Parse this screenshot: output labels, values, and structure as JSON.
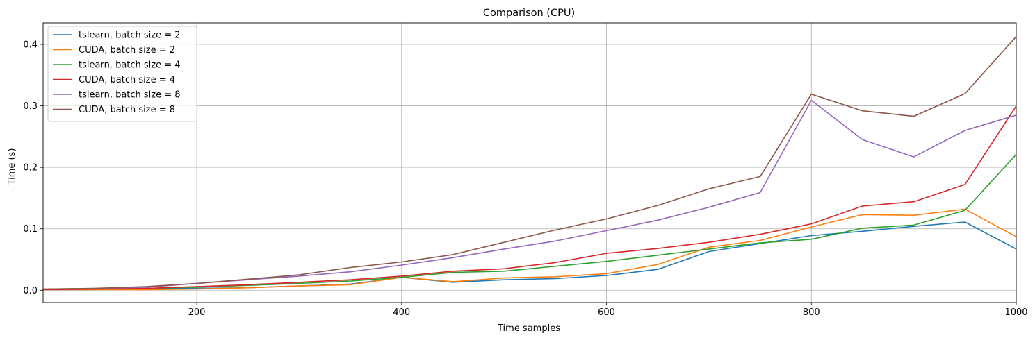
{
  "chart_data": {
    "type": "line",
    "title": "Comparison (CPU)",
    "xlabel": "Time samples",
    "ylabel": "Time (s)",
    "xlim": [
      50,
      1000
    ],
    "ylim": [
      -0.02,
      0.435
    ],
    "xticks": [
      200,
      400,
      600,
      800,
      1000
    ],
    "yticks": [
      0.0,
      0.1,
      0.2,
      0.3,
      0.4
    ],
    "xtick_labels": [
      "200",
      "400",
      "600",
      "800",
      "1000"
    ],
    "ytick_labels": [
      "0.0",
      "0.1",
      "0.2",
      "0.3",
      "0.4"
    ],
    "grid": true,
    "legend_position": "upper-left",
    "x": [
      50,
      100,
      150,
      200,
      250,
      300,
      350,
      400,
      450,
      500,
      550,
      600,
      650,
      700,
      750,
      800,
      850,
      900,
      950,
      1000
    ],
    "series": [
      {
        "name": "tslearn, batch size = 2",
        "color": "#1f77b4",
        "values": [
          0.001,
          0.001,
          0.002,
          0.003,
          0.004,
          0.007,
          0.01,
          0.021,
          0.013,
          0.017,
          0.019,
          0.024,
          0.034,
          0.063,
          0.076,
          0.089,
          0.096,
          0.104,
          0.111,
          0.067
        ]
      },
      {
        "name": "CUDA, batch size = 2",
        "color": "#ff7f0e",
        "values": [
          0.001,
          0.001,
          0.001,
          0.002,
          0.004,
          0.007,
          0.009,
          0.021,
          0.014,
          0.02,
          0.022,
          0.027,
          0.042,
          0.07,
          0.081,
          0.103,
          0.123,
          0.122,
          0.132,
          0.087
        ]
      },
      {
        "name": "tslearn, batch size = 4",
        "color": "#2ca02c",
        "values": [
          0.001,
          0.002,
          0.003,
          0.005,
          0.008,
          0.011,
          0.015,
          0.021,
          0.029,
          0.031,
          0.039,
          0.047,
          0.057,
          0.067,
          0.077,
          0.083,
          0.101,
          0.106,
          0.13,
          0.221
        ]
      },
      {
        "name": "CUDA, batch size = 4",
        "color": "#d62728",
        "values": [
          0.001,
          0.002,
          0.003,
          0.006,
          0.009,
          0.013,
          0.017,
          0.023,
          0.031,
          0.035,
          0.045,
          0.06,
          0.068,
          0.078,
          0.091,
          0.108,
          0.137,
          0.144,
          0.172,
          0.3
        ]
      },
      {
        "name": "tslearn, batch size = 8",
        "color": "#9467bd",
        "values": [
          0.002,
          0.003,
          0.005,
          0.011,
          0.017,
          0.023,
          0.03,
          0.041,
          0.053,
          0.067,
          0.08,
          0.097,
          0.114,
          0.135,
          0.159,
          0.309,
          0.245,
          0.217,
          0.26,
          0.285
        ]
      },
      {
        "name": "CUDA, batch size = 8",
        "color": "#8c564b",
        "values": [
          0.002,
          0.003,
          0.006,
          0.011,
          0.018,
          0.025,
          0.037,
          0.046,
          0.058,
          0.078,
          0.098,
          0.116,
          0.138,
          0.165,
          0.185,
          0.319,
          0.292,
          0.283,
          0.32,
          0.413
        ]
      }
    ]
  }
}
